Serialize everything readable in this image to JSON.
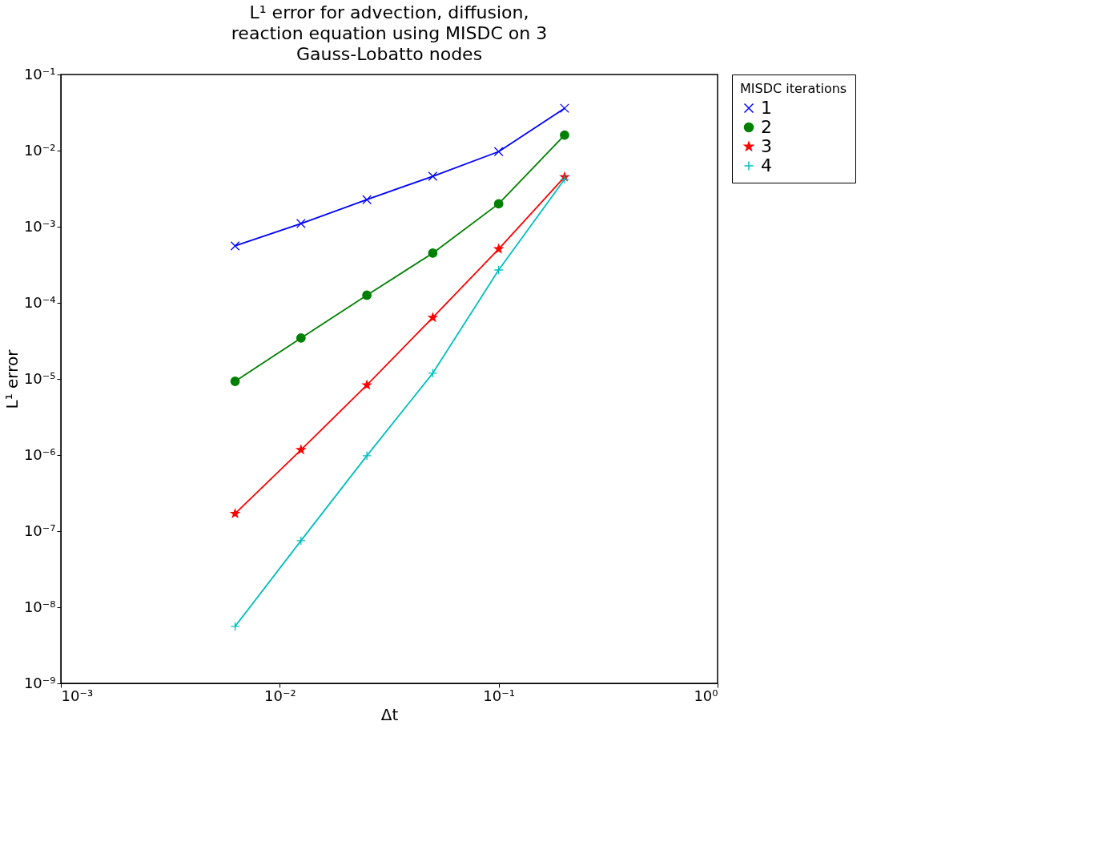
{
  "chart_data": {
    "type": "line",
    "title": "L¹  error for advection, diffusion, reaction equation using MISDC on 3 Gauss-Lobatto nodes",
    "xlabel": "Δt",
    "ylabel": "L¹  error",
    "legend_title": "MISDC iterations",
    "log": "xy",
    "grid": false,
    "legend": "right",
    "line_style": "solid",
    "x": [
      0.00625,
      0.0125,
      0.025,
      0.05,
      0.1,
      0.2
    ],
    "xlim": [
      0.001,
      1
    ],
    "xticks": [
      {
        "value": 0.001,
        "label": "10⁻³"
      },
      {
        "value": 0.01,
        "label": "10⁻²"
      },
      {
        "value": 0.1,
        "label": "10⁻¹"
      },
      {
        "value": 1,
        "label": "10⁰"
      }
    ],
    "ylim": [
      1e-09,
      0.1
    ],
    "yticks": [
      {
        "value": 1e-09,
        "label": "10⁻⁹"
      },
      {
        "value": 1e-08,
        "label": "10⁻⁸"
      },
      {
        "value": 1e-07,
        "label": "10⁻⁷"
      },
      {
        "value": 1e-06,
        "label": "10⁻⁶"
      },
      {
        "value": 1e-05,
        "label": "10⁻⁵"
      },
      {
        "value": 0.0001,
        "label": "10⁻⁴"
      },
      {
        "value": 0.001,
        "label": "10⁻³"
      },
      {
        "value": 0.01,
        "label": "10⁻²"
      },
      {
        "value": 0.1,
        "label": "10⁻¹"
      }
    ],
    "series": [
      {
        "name": "1",
        "color": "#0000ff",
        "marker": "x",
        "values": [
          0.00056,
          0.0011,
          0.00227,
          0.0046,
          0.0097,
          0.036
        ]
      },
      {
        "name": "2",
        "color": "#008000",
        "marker": "circle",
        "values": [
          9.3e-06,
          3.45e-05,
          0.000126,
          0.00045,
          0.002,
          0.016
        ]
      },
      {
        "name": "3",
        "color": "#ff0000",
        "marker": "star",
        "values": [
          1.7e-07,
          1.17e-06,
          8.3e-06,
          6.4e-05,
          0.00051,
          0.0045
        ]
      },
      {
        "name": "4",
        "color": "#00bfbf",
        "marker": "cross",
        "values": [
          5.6e-09,
          7.5e-08,
          9.8e-07,
          1.19e-05,
          0.00027,
          0.0042
        ]
      }
    ]
  }
}
